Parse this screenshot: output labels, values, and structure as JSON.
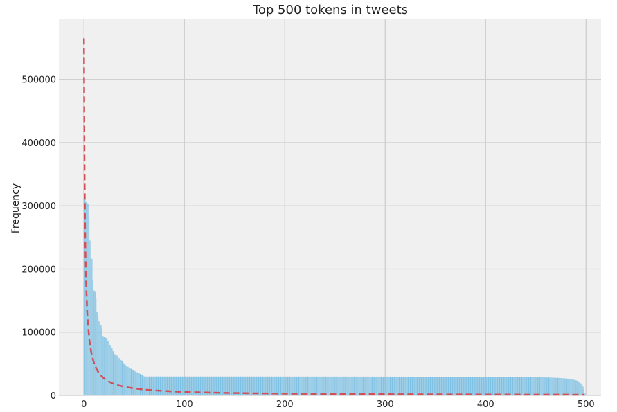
{
  "chart_data": {
    "type": "bar",
    "title": "Top 500 tokens in tweets",
    "xlabel": "",
    "ylabel": "Frequency",
    "xlim": [
      -25,
      515
    ],
    "ylim": [
      0,
      595000
    ],
    "x_ticks": [
      0,
      100,
      200,
      300,
      400,
      500
    ],
    "y_ticks": [
      0,
      100000,
      200000,
      300000,
      400000,
      500000
    ],
    "grid": true,
    "bar_color": "#7cc0e3",
    "ref_line_color": "#d0505a",
    "background_color": "#f0f0f0",
    "series": [
      {
        "kind": "bars",
        "rank_start": 0,
        "values": [
          522000,
          318000,
          306000,
          305000,
          303000,
          281000,
          245000,
          217000,
          216000,
          183000,
          166000,
          165000,
          153000,
          132000,
          126000,
          117000,
          115000,
          111000,
          106000,
          94000,
          93000,
          92000,
          91000,
          90000,
          86000,
          82000,
          80000,
          78000,
          75000,
          70000,
          66000,
          65000,
          64000,
          63000,
          61000,
          59000,
          57000,
          56000,
          54000,
          52000,
          50000,
          49000,
          47000,
          46000,
          45000,
          44000,
          43000,
          42000,
          41000,
          40000,
          39000,
          38000,
          37000,
          36500,
          36000,
          35000,
          34000,
          33000,
          32000,
          31000,
          30000
        ],
        "tail_rule": "ranks 61–499 decay smoothly from about 30000 to about 3000"
      },
      {
        "kind": "dashed-line",
        "rule": "y = 565000 / (rank + 1)",
        "rank_range": [
          0,
          499
        ]
      }
    ]
  }
}
